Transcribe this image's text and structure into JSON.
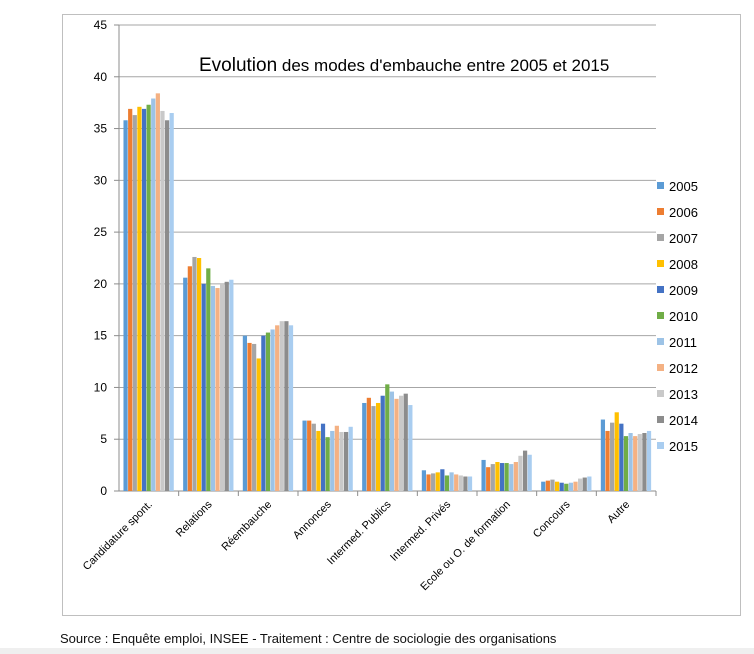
{
  "chart_data": {
    "type": "bar",
    "title_main": "Evolution",
    "title_rest": " des modes d'embauche entre 2005 et 2015",
    "categories": [
      "Candidature spont.",
      "Relations",
      "Réembauche",
      "Annonces",
      "Intermed. Publics",
      "Intermed. Privés",
      "Ecole ou O. de formation",
      "Concours",
      "Autre"
    ],
    "ylim": [
      0,
      45
    ],
    "yticks": [
      0,
      5,
      10,
      15,
      20,
      25,
      30,
      35,
      40,
      45
    ],
    "grid": true,
    "legend_position": "right",
    "series": [
      {
        "name": "2005",
        "color": "#5b9bd5",
        "values": [
          35.8,
          20.6,
          15.0,
          6.8,
          8.5,
          2.0,
          3.0,
          0.9,
          6.9
        ]
      },
      {
        "name": "2006",
        "color": "#ed7d31",
        "values": [
          36.9,
          21.7,
          14.3,
          6.8,
          9.0,
          1.6,
          2.3,
          1.0,
          5.8
        ]
      },
      {
        "name": "2007",
        "color": "#a5a5a5",
        "values": [
          36.3,
          22.6,
          14.2,
          6.5,
          8.2,
          1.7,
          2.6,
          1.1,
          6.6
        ]
      },
      {
        "name": "2008",
        "color": "#ffc000",
        "values": [
          37.1,
          22.5,
          12.8,
          5.8,
          8.5,
          1.8,
          2.8,
          0.9,
          7.6
        ]
      },
      {
        "name": "2009",
        "color": "#4472c4",
        "values": [
          36.9,
          20.0,
          15.0,
          6.5,
          9.2,
          2.1,
          2.7,
          0.8,
          6.5
        ]
      },
      {
        "name": "2010",
        "color": "#70ad47",
        "values": [
          37.3,
          21.5,
          15.3,
          5.2,
          10.3,
          1.5,
          2.7,
          0.7,
          5.3
        ]
      },
      {
        "name": "2011",
        "color": "#9dc3e6",
        "values": [
          37.9,
          19.8,
          15.6,
          5.8,
          9.6,
          1.8,
          2.6,
          0.8,
          5.6
        ]
      },
      {
        "name": "2012",
        "color": "#f4b183",
        "values": [
          38.4,
          19.6,
          16.0,
          6.3,
          8.9,
          1.6,
          2.8,
          0.9,
          5.3
        ]
      },
      {
        "name": "2013",
        "color": "#c9c9c9",
        "values": [
          36.7,
          20.0,
          16.4,
          5.7,
          9.2,
          1.5,
          3.4,
          1.2,
          5.5
        ]
      },
      {
        "name": "2014",
        "color": "#8c8c8c",
        "values": [
          35.8,
          20.2,
          16.4,
          5.7,
          9.4,
          1.4,
          3.9,
          1.3,
          5.6
        ]
      },
      {
        "name": "2015",
        "color": "#a9cdf0",
        "values": [
          36.5,
          20.4,
          16.0,
          6.2,
          8.3,
          1.4,
          3.5,
          1.4,
          5.8
        ]
      }
    ]
  },
  "footer": {
    "source": "Source : Enquête emploi, INSEE - Traitement : Centre de sociologie des organisations"
  }
}
